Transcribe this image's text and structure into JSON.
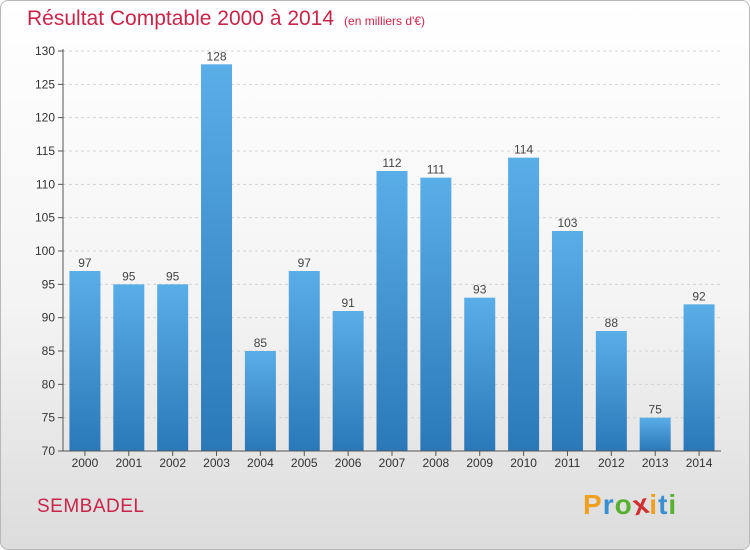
{
  "title": "Résultat Comptable 2000 à 2014",
  "subtitle": "(en milliers d'€)",
  "commune": "SEMBADEL",
  "logo": {
    "letters": [
      "P",
      "r",
      "o",
      "x",
      "i",
      "t",
      "i"
    ],
    "colors": [
      "#f0a020",
      "#3a8fd0",
      "#58b030",
      "#d03030",
      "#f0a020",
      "#3a8fd0",
      "#58b030"
    ]
  },
  "colors": {
    "bar_light": "#5aaee8",
    "bar_dark": "#2a78b8",
    "title": "#c8254a"
  },
  "chart_data": {
    "type": "bar",
    "categories": [
      "2000",
      "2001",
      "2002",
      "2003",
      "2004",
      "2005",
      "2006",
      "2007",
      "2008",
      "2009",
      "2010",
      "2011",
      "2012",
      "2013",
      "2014"
    ],
    "values": [
      97,
      95,
      95,
      128,
      85,
      97,
      91,
      112,
      111,
      93,
      114,
      103,
      88,
      75,
      92
    ],
    "title": "Résultat Comptable 2000 à 2014",
    "subtitle": "(en milliers d'€)",
    "xlabel": "",
    "ylabel": "",
    "ylim": [
      70,
      130
    ],
    "yticks": [
      70,
      75,
      80,
      85,
      90,
      95,
      100,
      105,
      110,
      115,
      120,
      125,
      130
    ],
    "grid": true,
    "data_labels": true
  }
}
